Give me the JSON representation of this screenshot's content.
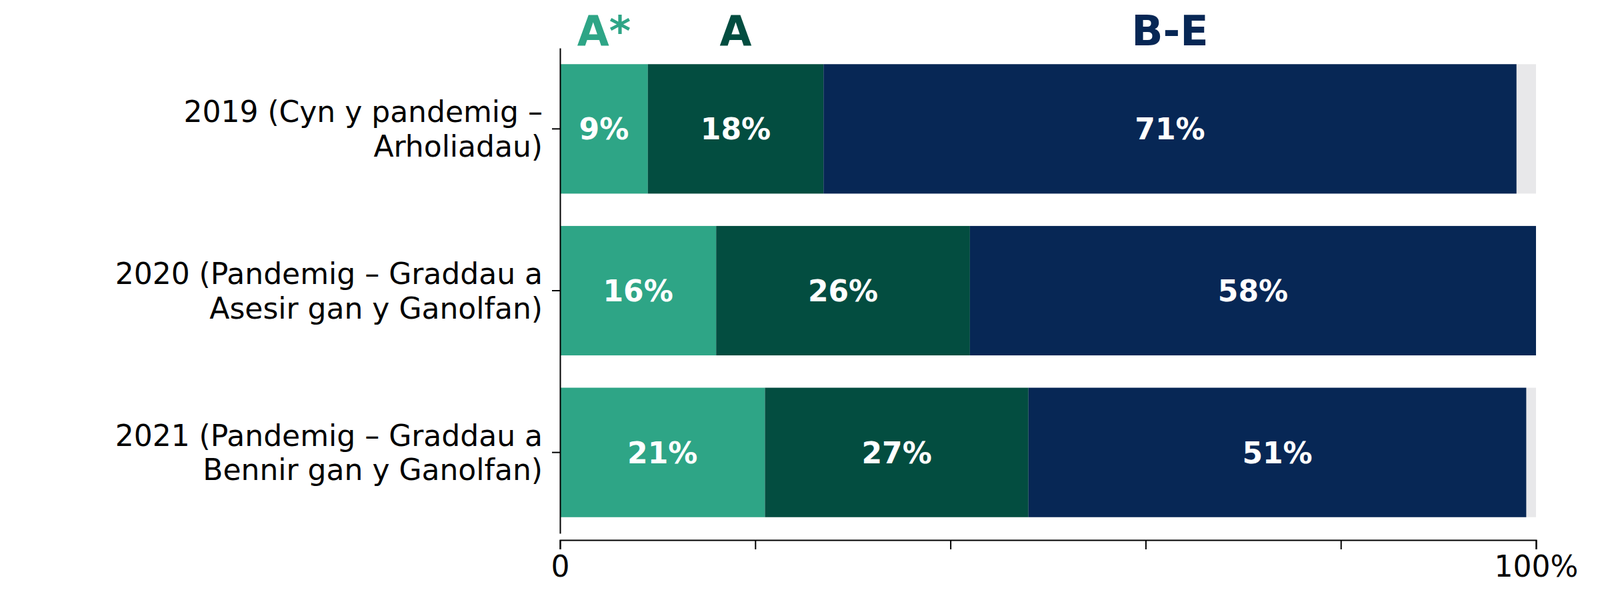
{
  "chart_data": {
    "type": "bar",
    "orientation": "horizontal",
    "stacked": true,
    "data_labels": true,
    "legend": "top",
    "categories": [
      "2019 (Cyn y pandemig –\nArholiadau)",
      "2020 (Pandemig – Graddau a\nAsesir gan y Ganolfan)",
      "2021 (Pandemig – Graddau a\nBennir gan y Ganolfan)"
    ],
    "series": [
      {
        "name": "A*",
        "color": "#2ea586",
        "values": [
          9,
          16,
          21
        ],
        "value_labels": [
          "9%",
          "16%",
          "21%"
        ]
      },
      {
        "name": "A",
        "color": "#034d40",
        "values": [
          18,
          26,
          27
        ],
        "value_labels": [
          "18%",
          "26%",
          "27%"
        ]
      },
      {
        "name": "B-E",
        "color": "#072755",
        "values": [
          71,
          58,
          51
        ],
        "value_labels": [
          "71%",
          "58%",
          "51%"
        ]
      }
    ],
    "xlim": [
      0,
      100
    ],
    "xticks": [
      0,
      {
        "value": 20,
        "label": null
      },
      {
        "value": 40,
        "label": null
      },
      {
        "value": 60,
        "label": null
      },
      {
        "value": 80,
        "label": null
      },
      {
        "value": 100,
        "label": "100%"
      }
    ]
  }
}
